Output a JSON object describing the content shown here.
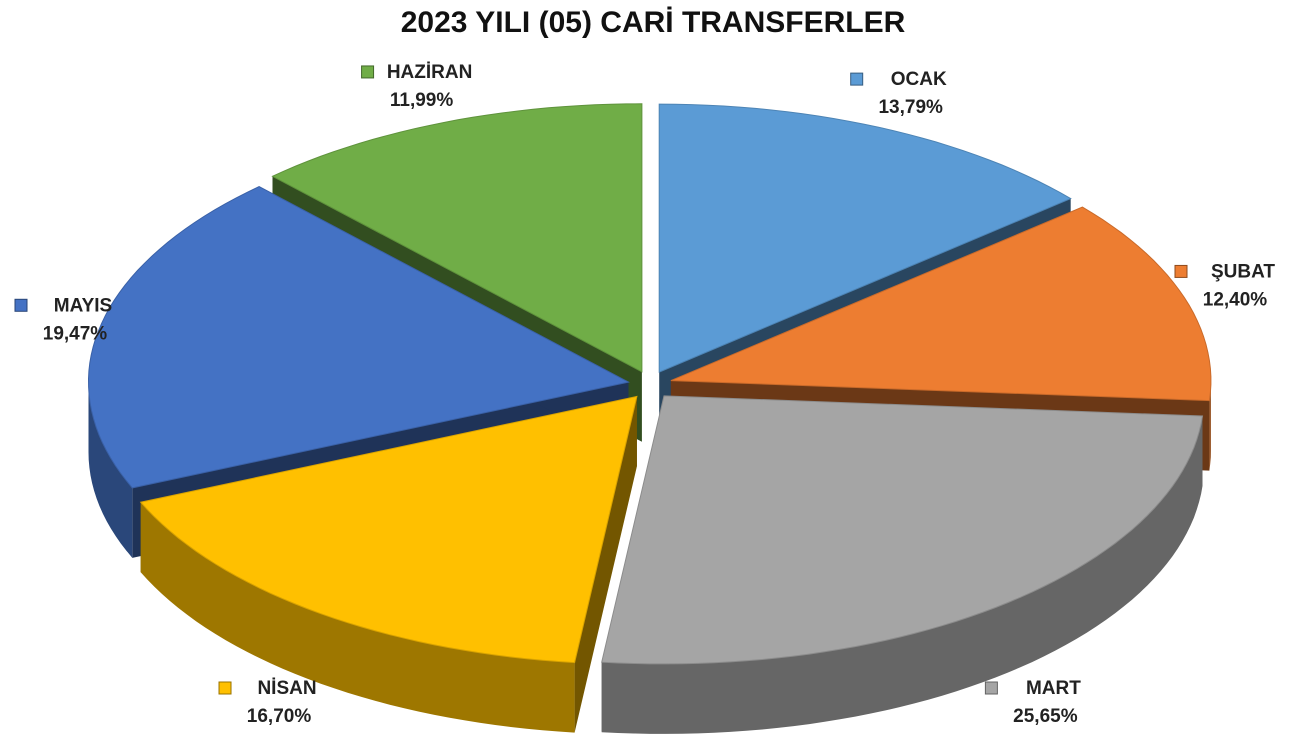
{
  "chart_data": {
    "type": "pie3d",
    "title": "2023 YILI (05) CARİ TRANSFERLER",
    "categories": [
      "OCAK",
      "ŞUBAT",
      "MART",
      "NİSAN",
      "MAYIS",
      "HAZİRAN"
    ],
    "values": [
      13.79,
      12.4,
      25.65,
      16.7,
      19.47,
      11.99
    ],
    "value_labels": [
      "13,79%",
      "12,40%",
      "25,65%",
      "16,70%",
      "19,47%",
      "11,99%"
    ],
    "colors": [
      "#5b9bd5",
      "#ed7d31",
      "#a5a5a5",
      "#ffc000",
      "#4472c4",
      "#70ad47"
    ]
  }
}
